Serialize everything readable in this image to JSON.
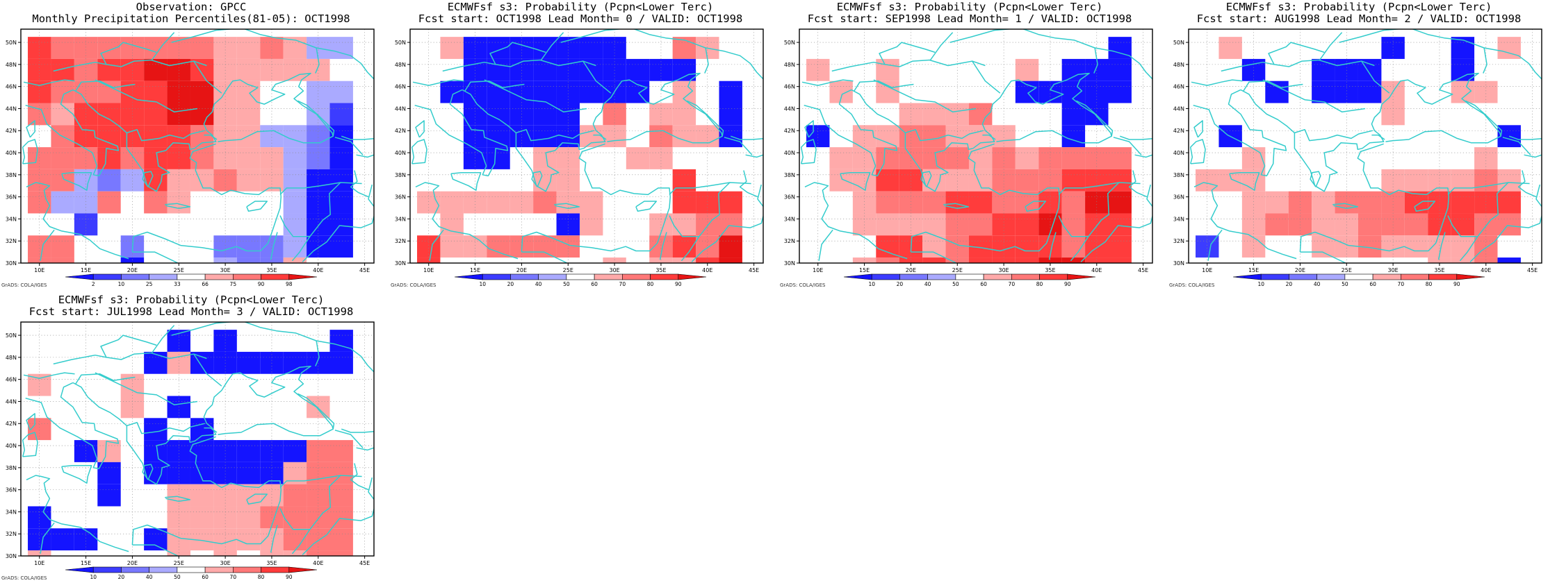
{
  "map": {
    "lon_ticks": [
      "10E",
      "15E",
      "20E",
      "25E",
      "30E",
      "35E",
      "40E",
      "45E"
    ],
    "lat_ticks": [
      "50N",
      "48N",
      "46N",
      "44N",
      "42N",
      "40N",
      "38N",
      "36N",
      "34N",
      "32N",
      "30N"
    ],
    "credit": "GrADS: COLA/IGES",
    "coastline_color": "#33cccc"
  },
  "legends": {
    "observation": [
      "2",
      "10",
      "25",
      "33",
      "66",
      "75",
      "90",
      "98"
    ],
    "forecast": [
      "10",
      "20",
      "40",
      "50",
      "60",
      "70",
      "80",
      "90"
    ],
    "colors": [
      "#1414ff",
      "#3c3cff",
      "#7878ff",
      "#aaaaff",
      "#ffffff",
      "#ffaaaa",
      "#ff7878",
      "#ff3c3c",
      "#e61414"
    ]
  },
  "panels": [
    {
      "title1": "Observation: GPCC",
      "title2": "Monthly Precipitation Percentiles(81-05): OCT1998",
      "legend": "observation",
      "grid": [
        "76666666556533",
        "77677887555554",
        "76667788554433",
        "65777788554431",
        "46777776553320",
        "66676776555320",
        "66323755655300",
        "63364654444300",
        "44144444444300",
        "66442444222300",
        "66440444322544"
      ]
    },
    {
      "title1": "ECMWFsf s3: Probability (Pcpn<Lower Terc)",
      "title2": "Fcst start: OCT1998  Lead Month= 0 / VALID: OCT1998",
      "legend": "forecast",
      "grid": [
        "45000000044654",
        "44000000000044",
        "40000000004540",
        "44000004645540",
        "44000005546550",
        "44004554455444",
        "44444554444744",
        "55555655444777",
        "45444405445566",
        "75566664446768",
        "74444444545578"
      ]
    },
    {
      "title1": "ECMWFsf s3: Probability (Pcpn<Lower Terc)",
      "title2": "Fcst start: SEP1998  Lead Month= 1 / VALID: OCT1998",
      "legend": "forecast",
      "grid": [
        "44444444444440",
        "54454444454000",
        "45454444400000",
        "44445556444004",
        "04556655544044",
        "45566665656666",
        "45577555666777",
        "44566677667688",
        "44555566778677",
        "44477567777677",
        "44567767778877"
      ]
    },
    {
      "title1": "ECMWFsf s3: Probability (Pcpn<Lower Terc)",
      "title2": "Fcst start: AUG1998  Lead Month= 2 / VALID: OCT1998",
      "legend": "forecast",
      "grid": [
        "45444444044045",
        "44044000444044",
        "44404000544554",
        "44444444544444",
        "40444444444440",
        "44544444444454",
        "55544444555565",
        "44556566677777",
        "44566556667766",
        "14544556555564",
        "44444444445560"
      ]
    },
    {
      "title1": "ECMWFsf s3: Probability (Pcpn<Lower Terc)",
      "title2": "Fcst start: JUL1998  Lead Month= 3 / VALID: OCT1998",
      "legend": "forecast",
      "grid": [
        "44444404044440",
        "44444050000000",
        "54445444444444",
        "44445404444454",
        "64444040444444",
        "44054000000066",
        "44404000000566",
        "44404455555666",
        "04444455556666",
        "00044055555666",
        "54444454545566"
      ]
    }
  ]
}
